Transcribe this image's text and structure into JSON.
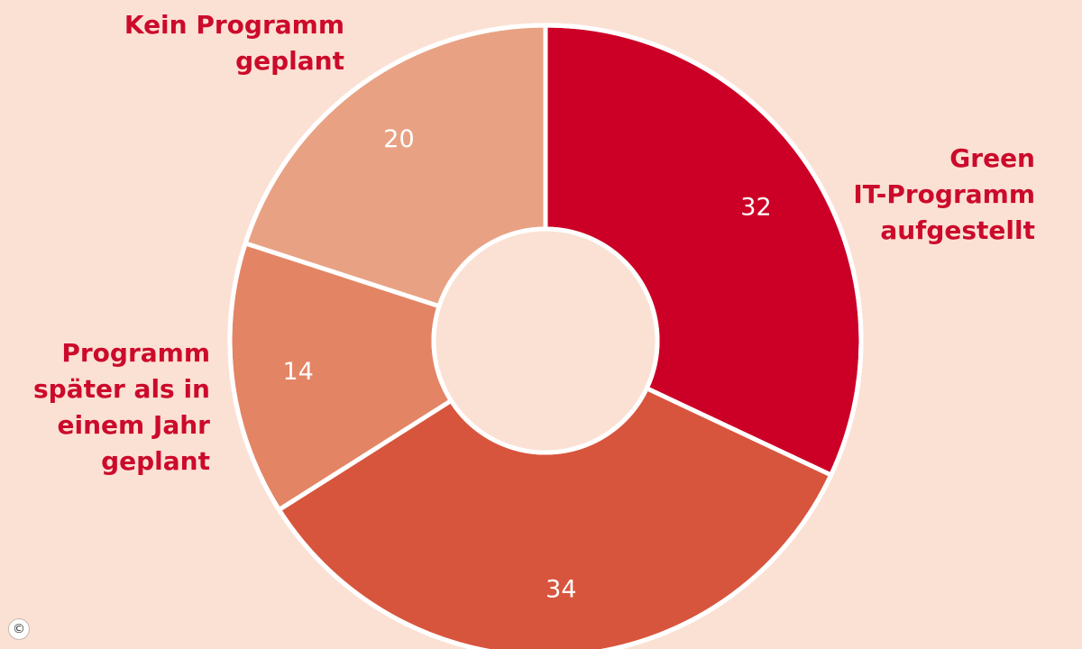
{
  "chart_data": {
    "type": "pie",
    "donut": true,
    "slices": [
      {
        "label": "Green IT-Programm aufgestellt",
        "label_lines": [
          "Green",
          "IT-Programm",
          "aufgestellt"
        ],
        "value": 32,
        "color": "#cc0026"
      },
      {
        "label": "",
        "label_lines": [],
        "value": 34,
        "color": "#d8553d"
      },
      {
        "label": "Programm später als in einem Jahr geplant",
        "label_lines": [
          "Programm",
          "später als in",
          "einem Jahr",
          "geplant"
        ],
        "value": 14,
        "color": "#e38465"
      },
      {
        "label": "Kein Programm geplant",
        "label_lines": [
          "Kein Programm",
          "geplant"
        ],
        "value": 20,
        "color": "#e8a283"
      }
    ]
  },
  "copyright_symbol": "©"
}
